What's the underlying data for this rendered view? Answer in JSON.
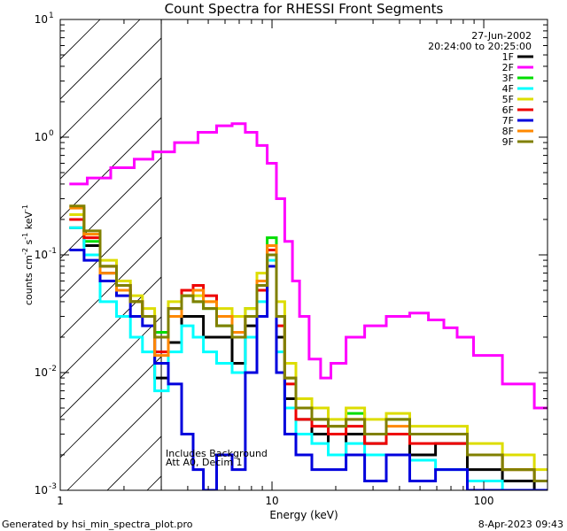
{
  "chart_data": {
    "type": "line",
    "title": "Count Spectra for RHESSI Front Segments",
    "xlabel": "Energy (keV)",
    "ylabel_parts": {
      "base": "counts cm",
      "exp1": "-2",
      "mid": " s",
      "exp2": "-1",
      "unit": " keV",
      "exp3": "-1"
    },
    "x_scale": "log",
    "y_scale": "log",
    "xlim": [
      1,
      200
    ],
    "ylim": [
      0.001,
      10
    ],
    "x_ticks": [
      {
        "value": 1,
        "label": "1"
      },
      {
        "value": 10,
        "label": "10"
      },
      {
        "value": 100,
        "label": "100"
      }
    ],
    "y_ticks": [
      {
        "value": 0.001,
        "base": "10",
        "exp": "-3"
      },
      {
        "value": 0.01,
        "base": "10",
        "exp": "-2"
      },
      {
        "value": 0.1,
        "base": "10",
        "exp": "-1"
      },
      {
        "value": 1,
        "base": "10",
        "exp": "0"
      },
      {
        "value": 10,
        "base": "10",
        "exp": "1"
      }
    ],
    "date": "27-Jun-2002",
    "time_range": "20:24:00 to 20:25:00",
    "hatched_region": [
      1,
      3
    ],
    "annotations": [
      "Includes Background",
      "Att A0, Decim 1"
    ],
    "legend_position": "top-right",
    "series": [
      {
        "name": "1F",
        "color": "#000000",
        "x": [
          1.2,
          1.4,
          1.7,
          2.0,
          2.3,
          2.6,
          3.0,
          3.5,
          4.0,
          4.5,
          5.0,
          6.0,
          7.0,
          8.0,
          9.0,
          10.0,
          11.0,
          12.0,
          14.0,
          17.0,
          20.0,
          25.0,
          30.0,
          40.0,
          50.0,
          70.0,
          100.0,
          150.0,
          200.0
        ],
        "y": [
          0.17,
          0.12,
          0.07,
          0.05,
          0.04,
          0.03,
          0.009,
          0.018,
          0.03,
          0.03,
          0.02,
          0.02,
          0.012,
          0.025,
          0.05,
          0.1,
          0.02,
          0.006,
          0.004,
          0.003,
          0.002,
          0.003,
          0.0025,
          0.003,
          0.002,
          0.0025,
          0.0015,
          0.0012,
          0.001
        ]
      },
      {
        "name": "2F",
        "color": "#ff00ff",
        "x": [
          1.2,
          1.5,
          2.0,
          2.5,
          3.0,
          4.0,
          5.0,
          6.0,
          7.0,
          8.0,
          9.0,
          10.0,
          11.0,
          12.0,
          13.0,
          14.0,
          16.0,
          18.0,
          20.0,
          25.0,
          30.0,
          40.0,
          50.0,
          60.0,
          70.0,
          80.0,
          100.0,
          150.0,
          200.0
        ],
        "y": [
          0.4,
          0.45,
          0.55,
          0.65,
          0.75,
          0.9,
          1.1,
          1.25,
          1.3,
          1.1,
          0.85,
          0.6,
          0.3,
          0.13,
          0.06,
          0.03,
          0.013,
          0.009,
          0.012,
          0.02,
          0.025,
          0.03,
          0.032,
          0.028,
          0.024,
          0.02,
          0.014,
          0.008,
          0.005
        ]
      },
      {
        "name": "3F",
        "color": "#00dd00",
        "x": [
          1.2,
          1.4,
          1.7,
          2.0,
          2.3,
          2.6,
          3.0,
          3.5,
          4.0,
          4.5,
          5.0,
          6.0,
          7.0,
          8.0,
          9.0,
          10.0,
          11.0,
          12.0,
          14.0,
          17.0,
          20.0,
          25.0,
          30.0,
          40.0,
          50.0,
          70.0,
          100.0,
          150.0,
          200.0
        ],
        "y": [
          0.2,
          0.13,
          0.08,
          0.05,
          0.04,
          0.03,
          0.022,
          0.03,
          0.045,
          0.04,
          0.035,
          0.025,
          0.022,
          0.035,
          0.06,
          0.14,
          0.03,
          0.009,
          0.005,
          0.004,
          0.0035,
          0.0045,
          0.003,
          0.004,
          0.003,
          0.003,
          0.002,
          0.0015,
          0.0012
        ]
      },
      {
        "name": "4F",
        "color": "#00ffff",
        "x": [
          1.2,
          1.4,
          1.7,
          2.0,
          2.3,
          2.6,
          3.0,
          3.5,
          4.0,
          4.5,
          5.0,
          6.0,
          7.0,
          8.0,
          9.0,
          10.0,
          11.0,
          12.0,
          14.0,
          17.0,
          20.0,
          25.0,
          30.0,
          40.0,
          50.0,
          70.0,
          100.0,
          150.0,
          200.0
        ],
        "y": [
          0.17,
          0.1,
          0.04,
          0.03,
          0.02,
          0.015,
          0.007,
          0.015,
          0.025,
          0.02,
          0.015,
          0.012,
          0.01,
          0.02,
          0.04,
          0.09,
          0.015,
          0.005,
          0.003,
          0.0025,
          0.002,
          0.0025,
          0.002,
          0.002,
          0.0018,
          0.0015,
          0.0012,
          0.001,
          0.001
        ]
      },
      {
        "name": "5F",
        "color": "#dddd00",
        "x": [
          1.2,
          1.4,
          1.7,
          2.0,
          2.3,
          2.6,
          3.0,
          3.5,
          4.0,
          4.5,
          5.0,
          6.0,
          7.0,
          8.0,
          9.0,
          10.0,
          11.0,
          12.0,
          14.0,
          17.0,
          20.0,
          25.0,
          30.0,
          40.0,
          50.0,
          70.0,
          100.0,
          150.0,
          200.0
        ],
        "y": [
          0.22,
          0.15,
          0.09,
          0.06,
          0.045,
          0.035,
          0.02,
          0.04,
          0.05,
          0.045,
          0.04,
          0.035,
          0.03,
          0.035,
          0.07,
          0.1,
          0.04,
          0.012,
          0.006,
          0.005,
          0.004,
          0.005,
          0.004,
          0.0045,
          0.0035,
          0.0035,
          0.0025,
          0.002,
          0.0015
        ]
      },
      {
        "name": "6F",
        "color": "#ee0000",
        "x": [
          1.2,
          1.4,
          1.7,
          2.0,
          2.3,
          2.6,
          3.0,
          3.5,
          4.0,
          4.5,
          5.0,
          6.0,
          7.0,
          8.0,
          9.0,
          10.0,
          11.0,
          12.0,
          14.0,
          17.0,
          20.0,
          25.0,
          30.0,
          40.0,
          50.0,
          70.0,
          100.0,
          150.0,
          200.0
        ],
        "y": [
          0.2,
          0.14,
          0.08,
          0.055,
          0.04,
          0.03,
          0.015,
          0.035,
          0.05,
          0.055,
          0.045,
          0.03,
          0.02,
          0.03,
          0.05,
          0.11,
          0.025,
          0.008,
          0.004,
          0.0035,
          0.003,
          0.0035,
          0.0025,
          0.003,
          0.0025,
          0.0025,
          0.002,
          0.0015,
          0.0012
        ]
      },
      {
        "name": "7F",
        "color": "#0000dd",
        "x": [
          1.2,
          1.4,
          1.7,
          2.0,
          2.3,
          2.6,
          3.0,
          3.5,
          4.0,
          4.5,
          5.0,
          6.0,
          7.0,
          8.0,
          9.0,
          10.0,
          11.0,
          12.0,
          14.0,
          17.0,
          20.0,
          25.0,
          30.0,
          40.0,
          50.0,
          70.0,
          100.0,
          150.0,
          200.0
        ],
        "y": [
          0.11,
          0.09,
          0.06,
          0.045,
          0.03,
          0.025,
          0.012,
          0.008,
          0.003,
          0.0015,
          0.001,
          0.002,
          0.0015,
          0.01,
          0.03,
          0.08,
          0.01,
          0.003,
          0.002,
          0.0015,
          0.0015,
          0.002,
          0.0012,
          0.002,
          0.0012,
          0.0015,
          0.001,
          0.001,
          0.001
        ]
      },
      {
        "name": "8F",
        "color": "#ff8800",
        "x": [
          1.2,
          1.4,
          1.7,
          2.0,
          2.3,
          2.6,
          3.0,
          3.5,
          4.0,
          4.5,
          5.0,
          6.0,
          7.0,
          8.0,
          9.0,
          10.0,
          11.0,
          12.0,
          14.0,
          17.0,
          20.0,
          25.0,
          30.0,
          40.0,
          50.0,
          70.0,
          100.0,
          150.0,
          200.0
        ],
        "y": [
          0.25,
          0.15,
          0.07,
          0.05,
          0.04,
          0.03,
          0.014,
          0.03,
          0.045,
          0.05,
          0.04,
          0.03,
          0.022,
          0.03,
          0.06,
          0.12,
          0.03,
          0.009,
          0.005,
          0.004,
          0.0035,
          0.004,
          0.003,
          0.0035,
          0.003,
          0.003,
          0.002,
          0.0015,
          0.0012
        ]
      },
      {
        "name": "9F",
        "color": "#808000",
        "x": [
          1.2,
          1.4,
          1.7,
          2.0,
          2.3,
          2.6,
          3.0,
          3.5,
          4.0,
          4.5,
          5.0,
          6.0,
          7.0,
          8.0,
          9.0,
          10.0,
          11.0,
          12.0,
          14.0,
          17.0,
          20.0,
          25.0,
          30.0,
          40.0,
          50.0,
          70.0,
          100.0,
          150.0,
          200.0
        ],
        "y": [
          0.26,
          0.16,
          0.08,
          0.055,
          0.04,
          0.03,
          0.02,
          0.035,
          0.045,
          0.04,
          0.035,
          0.025,
          0.02,
          0.03,
          0.055,
          0.1,
          0.03,
          0.009,
          0.005,
          0.004,
          0.0035,
          0.004,
          0.003,
          0.004,
          0.003,
          0.003,
          0.002,
          0.0015,
          0.0012
        ]
      }
    ]
  },
  "footer": {
    "generated_by": "Generated by hsi_min_spectra_plot.pro",
    "timestamp": "8-Apr-2023 09:43"
  }
}
